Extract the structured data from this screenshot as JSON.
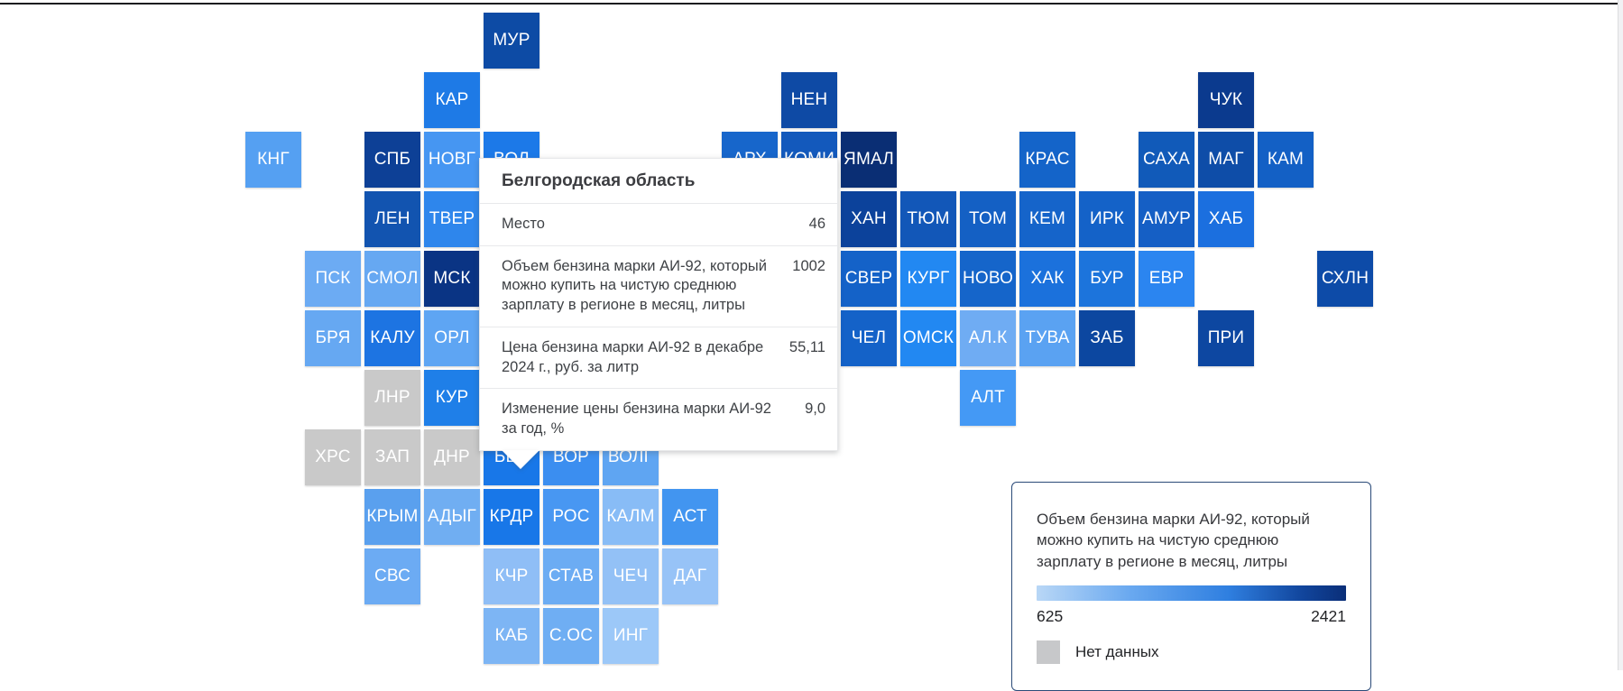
{
  "canvas": {
    "background": "#ffffff",
    "top_border_color": "#1b1c1f"
  },
  "chart_data": {
    "type": "heatmap",
    "subtype": "tile-grid-cartogram",
    "title": "Объем бензина марки АИ-92, который можно купить на чистую среднюю зарплату в регионе в месяц, литры",
    "legend_position": "bottom-right",
    "scale": {
      "min": 625,
      "max": 2421,
      "gradient_start": "#b9d7f6",
      "gradient_mid": "#2f7fe0",
      "gradient_end": "#0a2e78",
      "no_data_color": "#c9c9c9",
      "no_data_label": "Нет данных"
    },
    "no_data_regions": [
      "ЛНР",
      "ХРС",
      "ЗАП",
      "ДНР"
    ],
    "highlighted_region": {
      "code": "БЕЛ",
      "name": "Белгородская область",
      "rank": 46,
      "liters_per_salary": 1002,
      "price_dec_2024_rub_per_liter": "55,11",
      "price_change_year_pct": "9,0"
    },
    "tiles": [
      {
        "code": "МУР",
        "col": 4,
        "row": 0,
        "color": "#0d4ba5"
      },
      {
        "code": "КАР",
        "col": 3,
        "row": 1,
        "color": "#1e7ae6"
      },
      {
        "code": "НЕН",
        "col": 9,
        "row": 1,
        "color": "#0e4aa5"
      },
      {
        "code": "ЧУК",
        "col": 16,
        "row": 1,
        "color": "#0b3a8e"
      },
      {
        "code": "КНГ",
        "col": 0,
        "row": 2,
        "color": "#55a0f2"
      },
      {
        "code": "СПБ",
        "col": 2,
        "row": 2,
        "color": "#0d4096"
      },
      {
        "code": "НОВГ",
        "col": 3,
        "row": 2,
        "color": "#4696f2"
      },
      {
        "code": "ВОЛ",
        "col": 4,
        "row": 2,
        "color": "#1c79e8"
      },
      {
        "code": "АРХ",
        "col": 8,
        "row": 2,
        "color": "#1766cb"
      },
      {
        "code": "КОМИ",
        "col": 9,
        "row": 2,
        "color": "#1359bc"
      },
      {
        "code": "ЯМАЛ",
        "col": 10,
        "row": 2,
        "color": "#0a2e74"
      },
      {
        "code": "КРАС",
        "col": 13,
        "row": 2,
        "color": "#1464c9"
      },
      {
        "code": "САХА",
        "col": 15,
        "row": 2,
        "color": "#115ab9"
      },
      {
        "code": "МАГ",
        "col": 16,
        "row": 2,
        "color": "#0e4da8"
      },
      {
        "code": "КАМ",
        "col": 17,
        "row": 2,
        "color": "#1360c5"
      },
      {
        "code": "ЛЕН",
        "col": 2,
        "row": 3,
        "color": "#1254b0"
      },
      {
        "code": "ТВЕР",
        "col": 3,
        "row": 3,
        "color": "#2e86ec"
      },
      {
        "code": "ХАН",
        "col": 10,
        "row": 3,
        "color": "#0c429b"
      },
      {
        "code": "ТЮМ",
        "col": 11,
        "row": 3,
        "color": "#1257b8"
      },
      {
        "code": "ТОМ",
        "col": 12,
        "row": 3,
        "color": "#1460c4"
      },
      {
        "code": "КЕМ",
        "col": 13,
        "row": 3,
        "color": "#1564ca"
      },
      {
        "code": "ИРК",
        "col": 14,
        "row": 3,
        "color": "#1462c8"
      },
      {
        "code": "АМУР",
        "col": 15,
        "row": 3,
        "color": "#155fc5"
      },
      {
        "code": "ХАБ",
        "col": 16,
        "row": 3,
        "color": "#1b6fdf"
      },
      {
        "code": "ПСК",
        "col": 1,
        "row": 4,
        "color": "#6cabf3"
      },
      {
        "code": "СМОЛ",
        "col": 2,
        "row": 4,
        "color": "#66a8f2"
      },
      {
        "code": "МСК",
        "col": 3,
        "row": 4,
        "color": "#0a3484"
      },
      {
        "code": "СВЕР",
        "col": 10,
        "row": 4,
        "color": "#1462c8"
      },
      {
        "code": "КУРГ",
        "col": 11,
        "row": 4,
        "color": "#2288f2"
      },
      {
        "code": "НОВО",
        "col": 12,
        "row": 4,
        "color": "#1565ca"
      },
      {
        "code": "ХАК",
        "col": 13,
        "row": 4,
        "color": "#1b71dc"
      },
      {
        "code": "БУР",
        "col": 14,
        "row": 4,
        "color": "#1c74dc"
      },
      {
        "code": "ЕВР",
        "col": 15,
        "row": 4,
        "color": "#2b85f0"
      },
      {
        "code": "СХЛН",
        "col": 18,
        "row": 4,
        "color": "#0d4ba8"
      },
      {
        "code": "БРЯ",
        "col": 1,
        "row": 5,
        "color": "#66a8f2"
      },
      {
        "code": "КАЛУ",
        "col": 2,
        "row": 5,
        "color": "#1d74e2"
      },
      {
        "code": "ОРЛ",
        "col": 3,
        "row": 5,
        "color": "#5ea5f3"
      },
      {
        "code": "ЧЕЛ",
        "col": 10,
        "row": 5,
        "color": "#1462c8"
      },
      {
        "code": "ОМСК",
        "col": 11,
        "row": 5,
        "color": "#2288f2"
      },
      {
        "code": "АЛ.К",
        "col": 12,
        "row": 5,
        "color": "#6facf3"
      },
      {
        "code": "ТУВА",
        "col": 13,
        "row": 5,
        "color": "#5aa2f2"
      },
      {
        "code": "ЗАБ",
        "col": 14,
        "row": 5,
        "color": "#0c47a0"
      },
      {
        "code": "ПРИ",
        "col": 16,
        "row": 5,
        "color": "#0d47a1"
      },
      {
        "code": "ЛНР",
        "col": 2,
        "row": 6,
        "color": "#c9c9c9"
      },
      {
        "code": "КУР",
        "col": 3,
        "row": 6,
        "color": "#1f7fe8"
      },
      {
        "code": "АЛТ",
        "col": 12,
        "row": 6,
        "color": "#4499f5"
      },
      {
        "code": "ХРС",
        "col": 1,
        "row": 7,
        "color": "#c9c9c9"
      },
      {
        "code": "ЗАП",
        "col": 2,
        "row": 7,
        "color": "#c9c9c9"
      },
      {
        "code": "ДНР",
        "col": 3,
        "row": 7,
        "color": "#c9c9c9"
      },
      {
        "code": "БЕЛ",
        "col": 4,
        "row": 7,
        "color": "#1877e8"
      },
      {
        "code": "ВОР",
        "col": 5,
        "row": 7,
        "color": "#3b8ef0"
      },
      {
        "code": "ВОЛГ",
        "col": 6,
        "row": 7,
        "color": "#5fa5f2"
      },
      {
        "code": "КРЫМ",
        "col": 2,
        "row": 8,
        "color": "#5aa0ee"
      },
      {
        "code": "АДЫГ",
        "col": 3,
        "row": 8,
        "color": "#70aef2"
      },
      {
        "code": "КРДР",
        "col": 4,
        "row": 8,
        "color": "#1877e8"
      },
      {
        "code": "РОС",
        "col": 5,
        "row": 8,
        "color": "#4897f2"
      },
      {
        "code": "КАЛМ",
        "col": 6,
        "row": 8,
        "color": "#88bcf6"
      },
      {
        "code": "АСТ",
        "col": 7,
        "row": 8,
        "color": "#4295f0"
      },
      {
        "code": "СВС",
        "col": 2,
        "row": 9,
        "color": "#6cabf3"
      },
      {
        "code": "КЧР",
        "col": 4,
        "row": 9,
        "color": "#8fbef6"
      },
      {
        "code": "СТАВ",
        "col": 5,
        "row": 9,
        "color": "#6cacf3"
      },
      {
        "code": "ЧЕЧ",
        "col": 6,
        "row": 9,
        "color": "#93c1f6"
      },
      {
        "code": "ДАГ",
        "col": 7,
        "row": 9,
        "color": "#97c3f7"
      },
      {
        "code": "КАБ",
        "col": 4,
        "row": 10,
        "color": "#7db5f4"
      },
      {
        "code": "С.ОС",
        "col": 5,
        "row": 10,
        "color": "#6faef3"
      },
      {
        "code": "ИНГ",
        "col": 6,
        "row": 10,
        "color": "#9cc8f8"
      }
    ]
  },
  "tooltip": {
    "title": "Белгородская область",
    "rows": [
      {
        "label": "Место",
        "value": "46"
      },
      {
        "label": "Объем бензина марки АИ-92, который можно купить на чистую среднюю зарплату в регионе в месяц, литры",
        "value": "1002"
      },
      {
        "label": "Цена бензина марки АИ-92 в декабре 2024 г., руб. за литр",
        "value": "55,11"
      },
      {
        "label": "Изменение цены бензина марки АИ-92 за год, %",
        "value": "9,0"
      }
    ]
  },
  "legend": {
    "title": "Объем бензина марки АИ-92, который можно купить на чистую среднюю зарплату в регионе в месяц, литры",
    "min": "625",
    "max": "2421",
    "no_data_label": "Нет данных",
    "gradient_start": "#b9d7f6",
    "gradient_end": "#0a2e78",
    "no_data_color": "#c7c8ca"
  }
}
